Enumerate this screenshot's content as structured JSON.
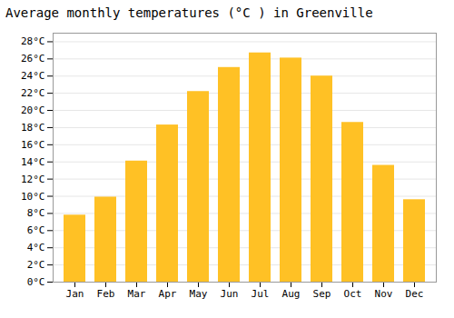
{
  "chart_data": {
    "type": "bar",
    "title": "Average monthly temperatures (°C ) in Greenville",
    "categories": [
      "Jan",
      "Feb",
      "Mar",
      "Apr",
      "May",
      "Jun",
      "Jul",
      "Aug",
      "Sep",
      "Oct",
      "Nov",
      "Dec"
    ],
    "values": [
      7.8,
      9.9,
      14.1,
      18.3,
      22.2,
      25.0,
      26.7,
      26.1,
      24.0,
      18.6,
      13.6,
      9.6
    ],
    "color": "#FFC125",
    "ylim": [
      0,
      29
    ],
    "yticks": [
      {
        "value": 0,
        "label": "0°C"
      },
      {
        "value": 2,
        "label": "2°C"
      },
      {
        "value": 4,
        "label": "4°C"
      },
      {
        "value": 6,
        "label": "6°C"
      },
      {
        "value": 8,
        "label": "8°C"
      },
      {
        "value": 10,
        "label": "10°C"
      },
      {
        "value": 12,
        "label": "12°C"
      },
      {
        "value": 14,
        "label": "14°C"
      },
      {
        "value": 16,
        "label": "16°C"
      },
      {
        "value": 18,
        "label": "18°C"
      },
      {
        "value": 20,
        "label": "20°C"
      },
      {
        "value": 22,
        "label": "22°C"
      },
      {
        "value": 24,
        "label": "24°C"
      },
      {
        "value": 26,
        "label": "26°C"
      },
      {
        "value": 28,
        "label": "28°C"
      }
    ],
    "grid": true
  }
}
